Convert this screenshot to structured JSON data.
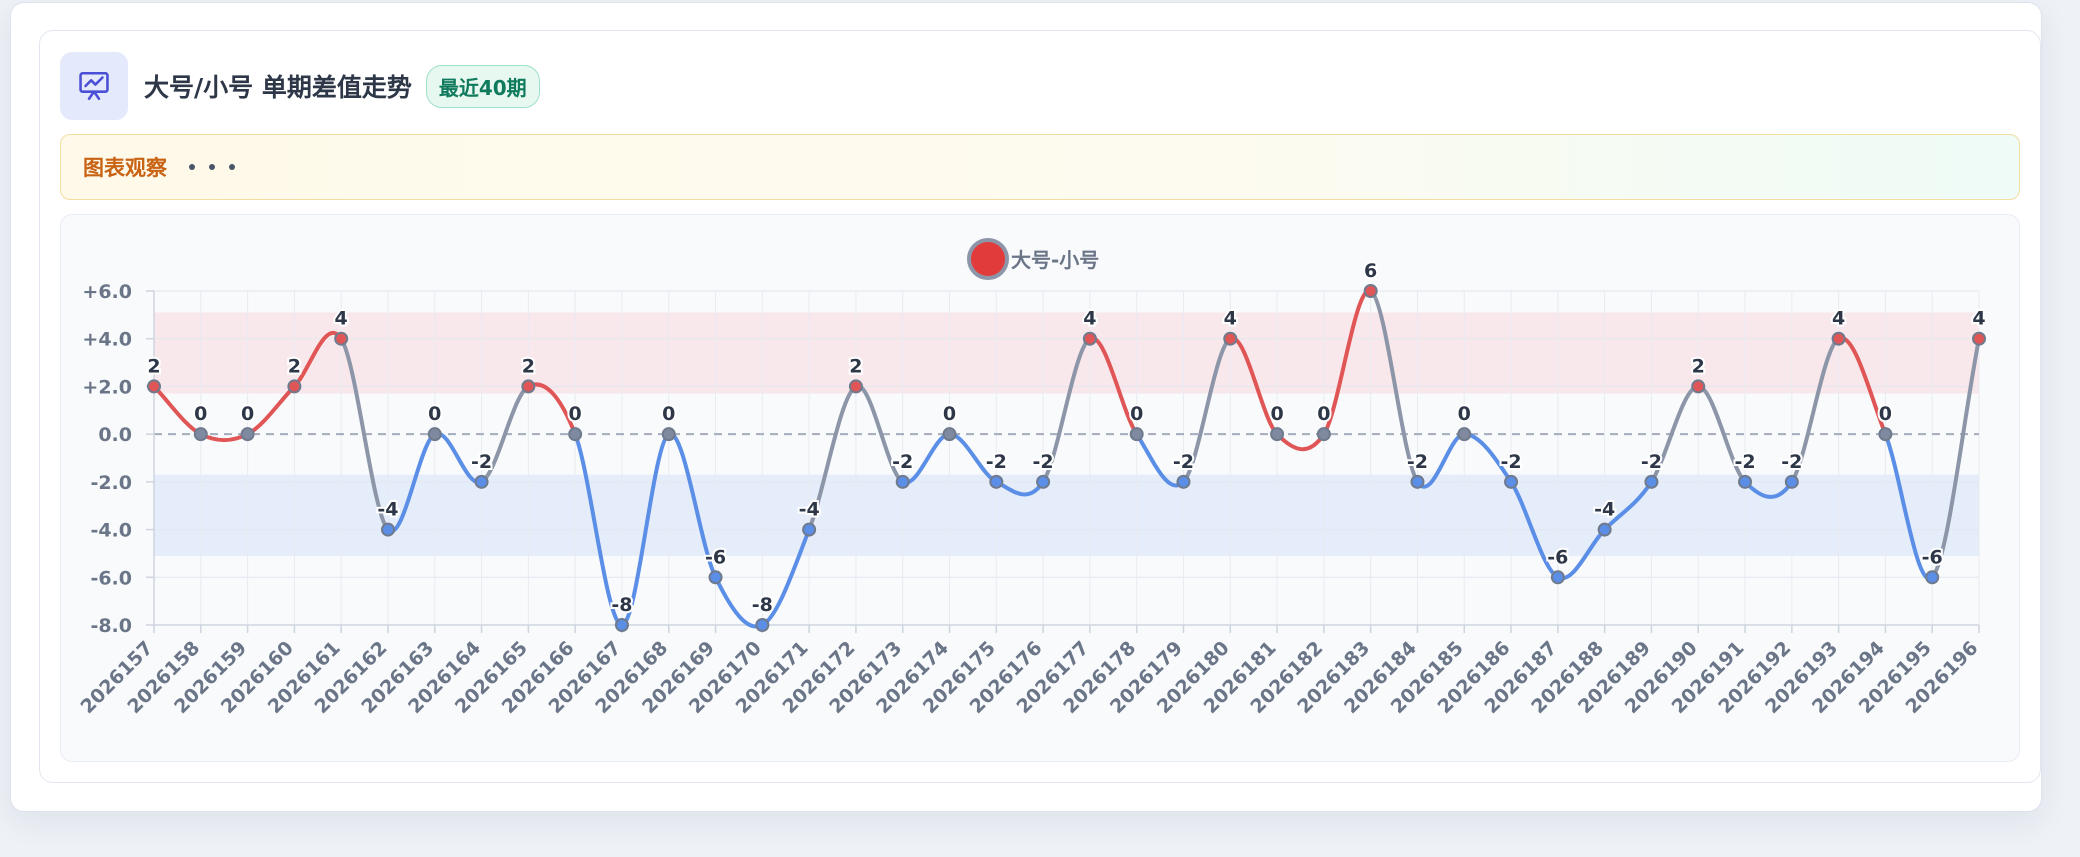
{
  "header": {
    "title": "大号/小号 单期差值走势",
    "badge": "最近40期",
    "icon": "presentation-chart-icon"
  },
  "insight": {
    "label": "图表观察",
    "icon": "ellipsis-icon"
  },
  "colors": {
    "positive": "#e05656",
    "negative": "#5b8ee6",
    "transition": "#8c96a8",
    "band_positive": "#f9e4e8",
    "band_negative": "#e2eaf9"
  },
  "chart_data": {
    "type": "line",
    "legend": "大号-小号",
    "legend_position": "top-center",
    "categories": [
      "2026157",
      "2026158",
      "2026159",
      "2026160",
      "2026161",
      "2026162",
      "2026163",
      "2026164",
      "2026165",
      "2026166",
      "2026167",
      "2026168",
      "2026169",
      "2026170",
      "2026171",
      "2026172",
      "2026173",
      "2026174",
      "2026175",
      "2026176",
      "2026177",
      "2026178",
      "2026179",
      "2026180",
      "2026181",
      "2026182",
      "2026183",
      "2026184",
      "2026185",
      "2026186",
      "2026187",
      "2026188",
      "2026189",
      "2026190",
      "2026191",
      "2026192",
      "2026193",
      "2026194",
      "2026195",
      "2026196"
    ],
    "values": [
      2,
      0,
      0,
      2,
      4,
      -4,
      0,
      -2,
      2,
      0,
      -8,
      0,
      -6,
      -8,
      -4,
      2,
      -2,
      0,
      -2,
      -2,
      4,
      0,
      -2,
      4,
      0,
      0,
      6,
      -2,
      0,
      -2,
      -6,
      -4,
      -2,
      2,
      -2,
      -2,
      4,
      0,
      -6,
      4
    ],
    "y_ticks": [
      "+6.0",
      "+4.0",
      "+2.0",
      "0.0",
      "-2.0",
      "-4.0",
      "-6.0",
      "-8.0"
    ],
    "ylim": [
      -8,
      6
    ],
    "bands": [
      {
        "from": 1.7,
        "to": 5.1,
        "kind": "positive"
      },
      {
        "from": -5.1,
        "to": -1.7,
        "kind": "negative"
      }
    ],
    "zero_line": "dashed",
    "grid": true
  }
}
